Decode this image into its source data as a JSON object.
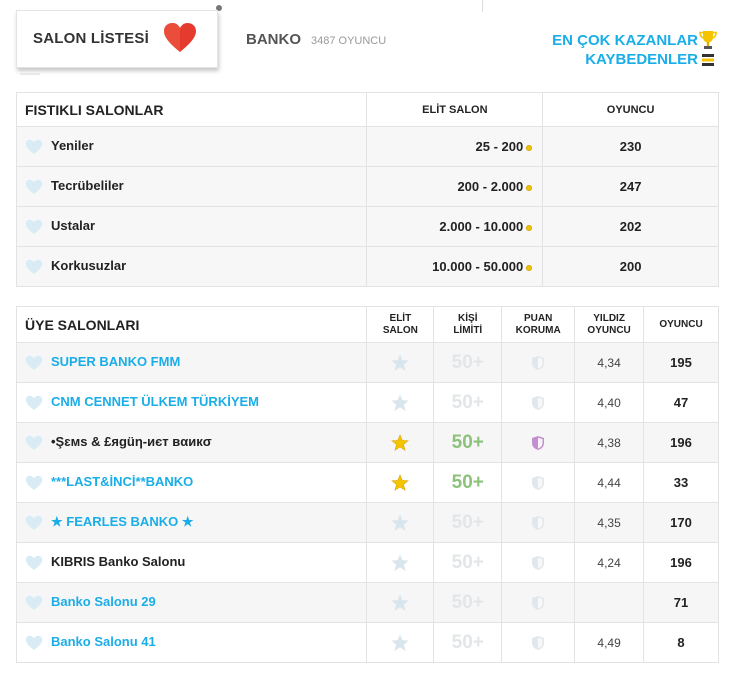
{
  "header": {
    "salon_list_title": "SALON LİSTESİ",
    "game_name": "BANKO",
    "player_count": "3487 OYUNCU",
    "top_winners": "EN ÇOK KAZANLAR",
    "top_losers": "KAYBEDENLER"
  },
  "pistachio": {
    "title": "FISTIKLI SALONLAR",
    "col_elite": "ELİT SALON",
    "col_players": "OYUNCU",
    "rows": [
      {
        "name": "Yeniler",
        "range": "25 - 200",
        "players": "230"
      },
      {
        "name": "Tecrübeliler",
        "range": "200 - 2.000",
        "players": "247"
      },
      {
        "name": "Ustalar",
        "range": "2.000 - 10.000",
        "players": "202"
      },
      {
        "name": "Korkusuzlar",
        "range": "10.000 - 50.000",
        "players": "200"
      }
    ]
  },
  "members": {
    "title": "ÜYE SALONLARI",
    "col_elite_1": "ELİT",
    "col_elite_2": "SALON",
    "col_limit_1": "KİŞİ",
    "col_limit_2": "LİMİTİ",
    "col_protect_1": "PUAN",
    "col_protect_2": "KORUMA",
    "col_star_1": "YILDIZ",
    "col_star_2": "OYUNCU",
    "col_players": "OYUNCU",
    "rows": [
      {
        "name": "SUPER BANKO FMM",
        "limit": "50+",
        "stars": "4,34",
        "players": "195"
      },
      {
        "name": "CNM CENNET ÜLKEM TÜRKİYEM",
        "limit": "50+",
        "stars": "4,40",
        "players": "47"
      },
      {
        "name": "•Şɛмѕ & £яgüη-иєт вαикσ",
        "limit": "50+",
        "stars": "4,38",
        "players": "196"
      },
      {
        "name": "***LAST&İNCİ**BANKO",
        "limit": "50+",
        "stars": "4,44",
        "players": "33"
      },
      {
        "name": "★ FEARLES BANKO ★",
        "limit": "50+",
        "stars": "4,35",
        "players": "170"
      },
      {
        "name": "KIBRIS Banko Salonu",
        "limit": "50+",
        "stars": "4,24",
        "players": "196"
      },
      {
        "name": "Banko Salonu 29",
        "limit": "50+",
        "stars": "",
        "players": "71"
      },
      {
        "name": "Banko Salonu 41",
        "limit": "50+",
        "stars": "4,49",
        "players": "8"
      }
    ]
  },
  "colors": {
    "accent_blue": "#1aaee8",
    "heart_red": "#e53b2e",
    "star_gold": "#f5c400",
    "limit_green": "#8dc27c",
    "shield_purple": "#c48fd0"
  }
}
